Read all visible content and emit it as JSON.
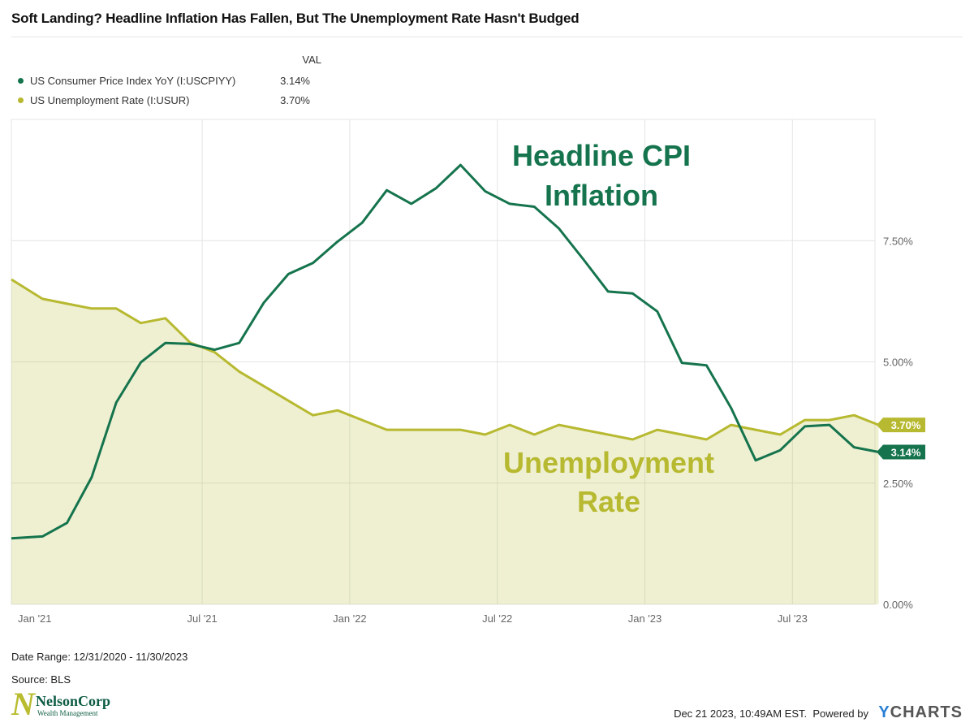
{
  "title": "Soft Landing? Headline Inflation Has Fallen, But The Unemployment Rate Hasn't Budged",
  "legend": {
    "header": "VAL",
    "items": [
      {
        "label": "US Consumer Price Index YoY (I:USCPIYY)",
        "value": "3.14%",
        "color": "#15744d"
      },
      {
        "label": "US Unemployment Rate (I:USUR)",
        "value": "3.70%",
        "color": "#b7b930"
      }
    ]
  },
  "annotations": {
    "cpi_line1": "Headline CPI",
    "cpi_line2": "Inflation",
    "unemp_line1": "Unemployment",
    "unemp_line2": "Rate"
  },
  "footer": {
    "date_range": "Date Range: 12/31/2020 - 11/30/2023",
    "source": "Source: BLS",
    "timestamp": "Dec 21 2023, 10:49AM EST.",
    "powered_by": "Powered by",
    "brand_y": "Y",
    "brand_rest": "CHARTS",
    "logo_letter": "N",
    "logo_name": "NelsonCorp",
    "logo_sub": "Wealth Management"
  },
  "chart_data": {
    "type": "line",
    "x_ticks": [
      "Jan '21",
      "Jul '21",
      "Jan '22",
      "Jul '22",
      "Jan '23",
      "Jul '23"
    ],
    "y_ticks": [
      "0.00%",
      "2.50%",
      "5.00%",
      "7.50%"
    ],
    "ylim": [
      0,
      10
    ],
    "grid": true,
    "x": [
      "2020-12",
      "2021-01",
      "2021-02",
      "2021-03",
      "2021-04",
      "2021-05",
      "2021-06",
      "2021-07",
      "2021-08",
      "2021-09",
      "2021-10",
      "2021-11",
      "2021-12",
      "2022-01",
      "2022-02",
      "2022-03",
      "2022-04",
      "2022-05",
      "2022-06",
      "2022-07",
      "2022-08",
      "2022-09",
      "2022-10",
      "2022-11",
      "2022-12",
      "2023-01",
      "2023-02",
      "2023-03",
      "2023-04",
      "2023-05",
      "2023-06",
      "2023-07",
      "2023-08",
      "2023-09",
      "2023-10",
      "2023-11"
    ],
    "series": [
      {
        "name": "US Consumer Price Index YoY (I:USCPIYY)",
        "color": "#15744d",
        "last_label": "3.14%",
        "values": [
          1.36,
          1.4,
          1.68,
          2.62,
          4.16,
          4.99,
          5.39,
          5.37,
          5.25,
          5.39,
          6.22,
          6.81,
          7.04,
          7.48,
          7.87,
          8.54,
          8.26,
          8.58,
          9.06,
          8.52,
          8.26,
          8.2,
          7.75,
          7.11,
          6.45,
          6.41,
          6.04,
          4.98,
          4.93,
          4.05,
          2.97,
          3.18,
          3.67,
          3.7,
          3.24,
          3.14
        ]
      },
      {
        "name": "US Unemployment Rate (I:USUR)",
        "color": "#b7b930",
        "last_label": "3.70%",
        "values": [
          6.7,
          6.3,
          6.2,
          6.1,
          6.1,
          5.8,
          5.9,
          5.4,
          5.2,
          4.8,
          4.5,
          4.2,
          3.9,
          4.0,
          3.8,
          3.6,
          3.6,
          3.6,
          3.6,
          3.5,
          3.7,
          3.5,
          3.7,
          3.6,
          3.5,
          3.4,
          3.6,
          3.5,
          3.4,
          3.7,
          3.6,
          3.5,
          3.8,
          3.8,
          3.9,
          3.7
        ]
      }
    ]
  }
}
